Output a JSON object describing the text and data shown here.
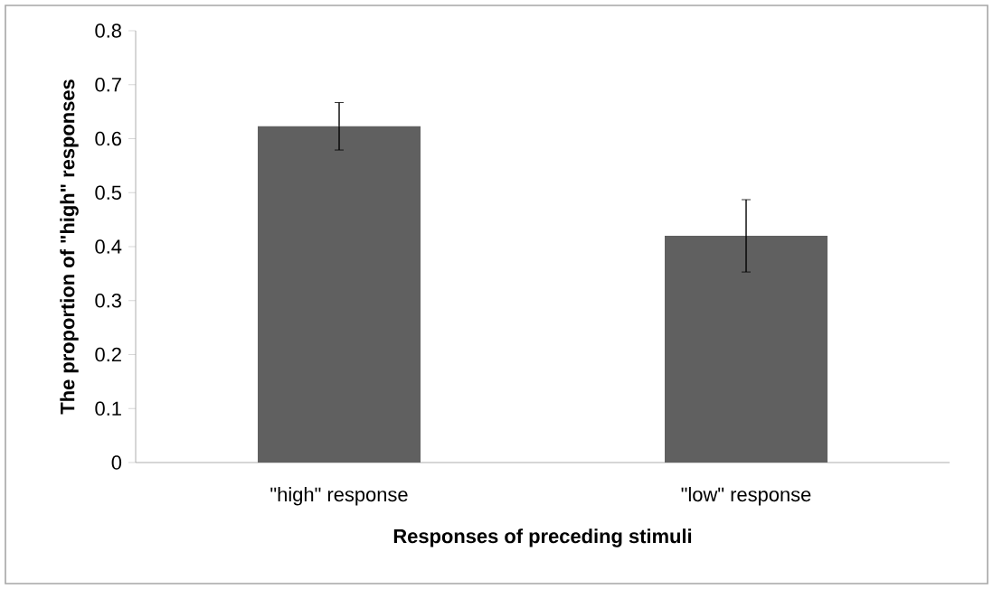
{
  "chart_data": {
    "type": "bar",
    "xlabel": "Responses of preceding stimuli",
    "ylabel": "The proportion of \"high\" responses",
    "categories": [
      "\"high\" response",
      "\"low\" response"
    ],
    "values": [
      0.623,
      0.42
    ],
    "errors": [
      0.044,
      0.067
    ],
    "color": "#606060",
    "ylim": [
      0,
      0.8
    ],
    "yticks": [
      0,
      0.1,
      0.2,
      0.3,
      0.4,
      0.5,
      0.6,
      0.7,
      0.8
    ],
    "grid": false
  }
}
